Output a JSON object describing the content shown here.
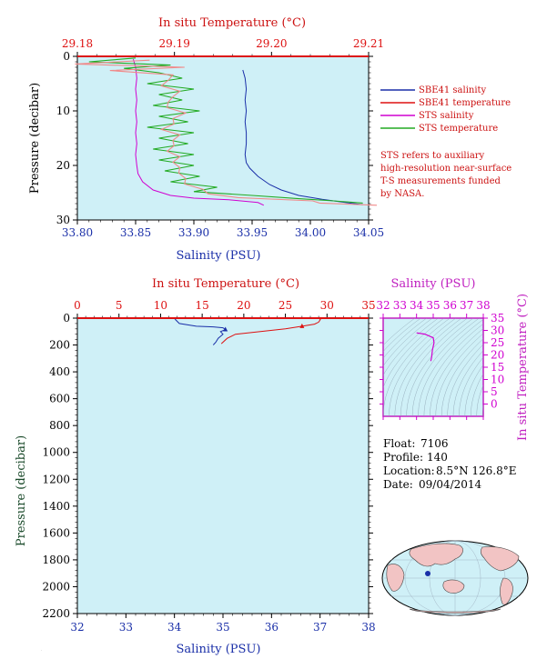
{
  "chart_data": [
    {
      "type": "line",
      "title": "",
      "top_axis": {
        "label": "In situ Temperature (°C)",
        "range": [
          29.18,
          29.21
        ],
        "ticks": [
          "29.18",
          "29.19",
          "29.20",
          "29.21"
        ]
      },
      "bottom_axis": {
        "label": "Salinity (PSU)",
        "range": [
          33.8,
          34.05
        ],
        "ticks": [
          "33.80",
          "33.85",
          "33.90",
          "33.95",
          "34.00",
          "34.05"
        ]
      },
      "y_axis": {
        "label": "Pressure (decibar)",
        "range": [
          0,
          30
        ],
        "inverted": true,
        "ticks": [
          "0",
          "10",
          "20",
          "30"
        ]
      },
      "legend": {
        "placement": "right",
        "items": [
          {
            "name": "SBE41 salinity",
            "color": "#1a2fa8"
          },
          {
            "name": "SBE41 temperature",
            "color": "#dd1111"
          },
          {
            "name": "STS salinity",
            "color": "#d000d0"
          },
          {
            "name": "STS temperature",
            "color": "#22aa22"
          }
        ]
      },
      "note": [
        "STS refers to auxiliary",
        "high-resolution near-surface",
        "T-S measurements funded",
        "by NASA."
      ],
      "series": [
        {
          "name": "SBE41 salinity",
          "axis": "salinity",
          "points": [
            [
              33.942,
              2.5
            ],
            [
              33.944,
              4
            ],
            [
              33.945,
              6
            ],
            [
              33.944,
              8
            ],
            [
              33.945,
              10
            ],
            [
              33.944,
              12
            ],
            [
              33.945,
              14
            ],
            [
              33.945,
              16
            ],
            [
              33.944,
              18
            ],
            [
              33.945,
              19.5
            ],
            [
              33.948,
              20.5
            ],
            [
              33.955,
              22
            ],
            [
              33.965,
              23.5
            ],
            [
              33.975,
              24.5
            ],
            [
              33.99,
              25.5
            ],
            [
              34.01,
              26.2
            ],
            [
              34.03,
              26.8
            ],
            [
              34.045,
              27.2
            ]
          ]
        },
        {
          "name": "SBE41 temperature",
          "axis": "temperature",
          "points": [
            [
              29.18,
              0
            ],
            [
              29.21,
              0
            ]
          ]
        },
        {
          "name": "STS salinity",
          "axis": "salinity",
          "points": [
            [
              33.848,
              0.5
            ],
            [
              33.85,
              2
            ],
            [
              33.851,
              4
            ],
            [
              33.85,
              6
            ],
            [
              33.851,
              8
            ],
            [
              33.85,
              10
            ],
            [
              33.851,
              12
            ],
            [
              33.85,
              14
            ],
            [
              33.851,
              16
            ],
            [
              33.85,
              18
            ],
            [
              33.851,
              20
            ],
            [
              33.852,
              21.5
            ],
            [
              33.856,
              23
            ],
            [
              33.865,
              24.5
            ],
            [
              33.88,
              25.5
            ],
            [
              33.9,
              26
            ],
            [
              33.93,
              26.3
            ],
            [
              33.955,
              26.8
            ],
            [
              33.96,
              27.3
            ]
          ]
        },
        {
          "name": "STS temperature",
          "axis": "salinity_scaled",
          "points": [
            [
              33.85,
              0.3
            ],
            [
              33.81,
              1.0
            ],
            [
              33.88,
              1.6
            ],
            [
              33.84,
              2.2
            ],
            [
              33.87,
              3
            ],
            [
              33.89,
              4
            ],
            [
              33.86,
              5
            ],
            [
              33.9,
              6
            ],
            [
              33.87,
              7
            ],
            [
              33.89,
              8
            ],
            [
              33.865,
              9
            ],
            [
              33.905,
              10
            ],
            [
              33.87,
              11
            ],
            [
              33.895,
              12
            ],
            [
              33.86,
              13
            ],
            [
              33.9,
              14
            ],
            [
              33.87,
              15
            ],
            [
              33.895,
              16
            ],
            [
              33.865,
              17
            ],
            [
              33.9,
              18
            ],
            [
              33.87,
              19
            ],
            [
              33.9,
              20
            ],
            [
              33.875,
              21
            ],
            [
              33.905,
              22
            ],
            [
              33.88,
              23
            ],
            [
              33.92,
              24
            ],
            [
              33.9,
              24.8
            ],
            [
              33.95,
              25.5
            ],
            [
              33.99,
              26.1
            ],
            [
              34.02,
              26.5
            ],
            [
              34.045,
              26.9
            ]
          ]
        }
      ]
    },
    {
      "type": "line",
      "top_axis": {
        "label": "In situ Temperature (°C)",
        "range": [
          0,
          35
        ],
        "ticks": [
          "0",
          "5",
          "10",
          "15",
          "20",
          "25",
          "30",
          "35"
        ]
      },
      "bottom_axis": {
        "label": "Salinity (PSU)",
        "range": [
          32,
          38
        ],
        "ticks": [
          "32",
          "33",
          "34",
          "35",
          "36",
          "37",
          "38"
        ]
      },
      "y_axis": {
        "label": "Pressure (decibar)",
        "range": [
          0,
          2200
        ],
        "inverted": true,
        "ticks": [
          "0",
          "200",
          "400",
          "600",
          "800",
          "1000",
          "1200",
          "1400",
          "1600",
          "1800",
          "2000",
          "2200"
        ]
      },
      "series": [
        {
          "name": "Salinity",
          "axis": "salinity",
          "color": "#1a2fa8",
          "points": [
            [
              34.0,
              0
            ],
            [
              34.02,
              10
            ],
            [
              34.1,
              40
            ],
            [
              34.45,
              60
            ],
            [
              34.8,
              65
            ],
            [
              35.0,
              72
            ],
            [
              35.05,
              85
            ],
            [
              34.95,
              100
            ],
            [
              35.0,
              120
            ],
            [
              34.9,
              150
            ],
            [
              34.85,
              180
            ],
            [
              34.8,
              200
            ]
          ]
        },
        {
          "name": "Temperature",
          "axis": "temperature",
          "color": "#dd1111",
          "points": [
            [
              29.0,
              0
            ],
            [
              29.2,
              10
            ],
            [
              29.0,
              30
            ],
            [
              28.5,
              45
            ],
            [
              27.0,
              60
            ],
            [
              25.0,
              80
            ],
            [
              22.0,
              100
            ],
            [
              19.0,
              120
            ],
            [
              18.0,
              150
            ],
            [
              17.3,
              190
            ]
          ]
        }
      ]
    },
    {
      "type": "scatter",
      "top_axis": {
        "label": "Salinity (PSU)",
        "range": [
          32,
          38
        ],
        "ticks": [
          "32",
          "33",
          "34",
          "35",
          "36",
          "37",
          "38"
        ]
      },
      "right_axis": {
        "label": "In situ Temperature (°C)",
        "range": [
          -5,
          35
        ],
        "ticks": [
          "35",
          "30",
          "25",
          "20",
          "15",
          "10",
          "5",
          "0"
        ]
      },
      "series": [
        {
          "name": "T-S",
          "color": "#d000d0",
          "points": [
            [
              34.0,
              29.0
            ],
            [
              34.5,
              28.5
            ],
            [
              35.0,
              27.0
            ],
            [
              35.05,
              25.0
            ],
            [
              34.95,
              22.0
            ],
            [
              34.9,
              19.0
            ],
            [
              34.85,
              17.5
            ]
          ]
        }
      ]
    }
  ],
  "info": {
    "float_label": "Float:",
    "float_value": "7106",
    "profile_label": "Profile:",
    "profile_value": "140",
    "location_label": "Location:",
    "location_value": "8.5°N  126.8°E",
    "date_label": "Date:",
    "date_value": "09/04/2014"
  },
  "colors": {
    "plot_bg": "#cff0f7",
    "red": "#dd1111",
    "blue": "#1a2fa8",
    "magenta": "#d000d0",
    "green": "#22aa22"
  }
}
